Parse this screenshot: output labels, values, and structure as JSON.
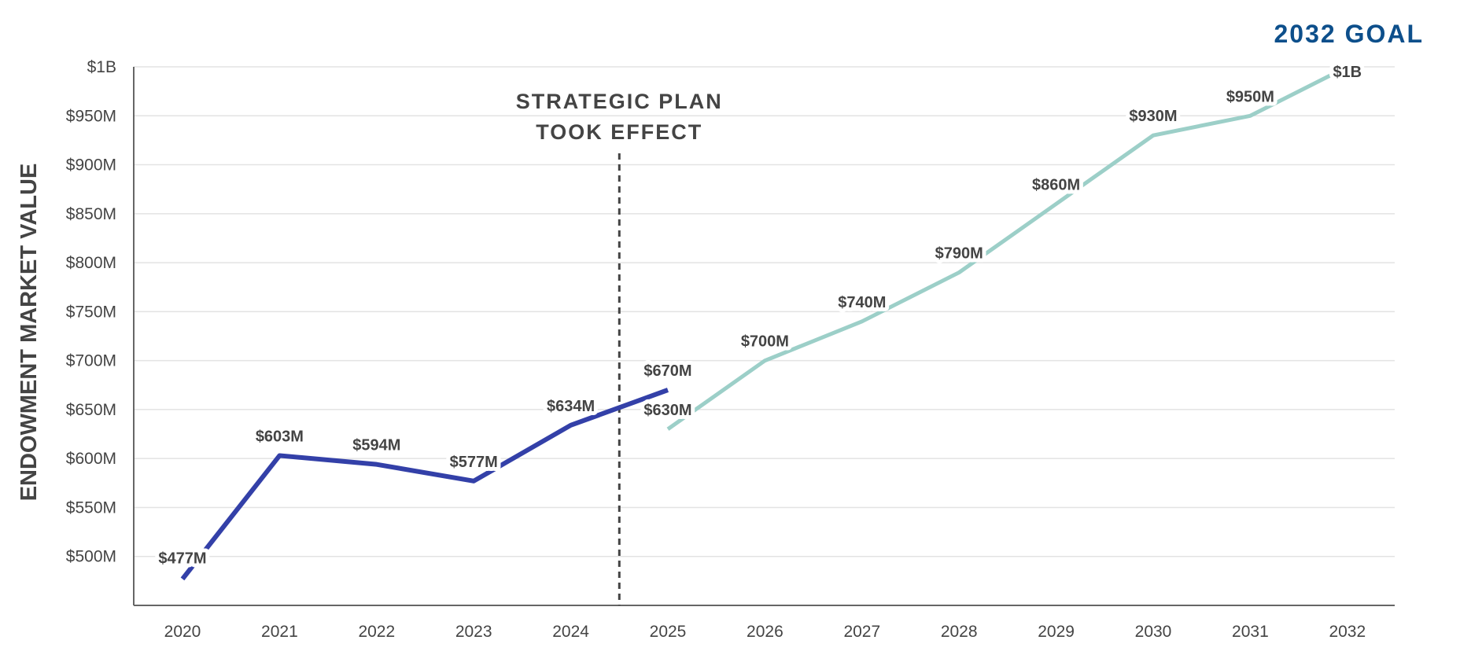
{
  "chart_data": {
    "type": "line",
    "ylabel": "ENDOWMENT MARKET VALUE",
    "xlabel": "",
    "ylim": [
      450,
      1000
    ],
    "grid": true,
    "y_ticks": [
      {
        "value": 500,
        "label": "$500M"
      },
      {
        "value": 550,
        "label": "$550M"
      },
      {
        "value": 600,
        "label": "$600M"
      },
      {
        "value": 650,
        "label": "$650M"
      },
      {
        "value": 700,
        "label": "$700M"
      },
      {
        "value": 750,
        "label": "$750M"
      },
      {
        "value": 800,
        "label": "$800M"
      },
      {
        "value": 850,
        "label": "$850M"
      },
      {
        "value": 900,
        "label": "$900M"
      },
      {
        "value": 950,
        "label": "$950M"
      },
      {
        "value": 1000,
        "label": "$1B"
      }
    ],
    "categories": [
      "2020",
      "2021",
      "2022",
      "2023",
      "2024",
      "2025",
      "2026",
      "2027",
      "2028",
      "2029",
      "2030",
      "2031",
      "2032"
    ],
    "series": [
      {
        "color": "#3340a8",
        "points": [
          {
            "x": "2020",
            "y": 477,
            "label": "$477M"
          },
          {
            "x": "2021",
            "y": 603,
            "label": "$603M"
          },
          {
            "x": "2022",
            "y": 594,
            "label": "$594M"
          },
          {
            "x": "2023",
            "y": 577,
            "label": "$577M"
          },
          {
            "x": "2024",
            "y": 634,
            "label": "$634M"
          },
          {
            "x": "2025",
            "y": 670,
            "label": "$670M"
          }
        ]
      },
      {
        "color": "#9ccfc8",
        "points": [
          {
            "x": "2025",
            "y": 630,
            "label": "$630M"
          },
          {
            "x": "2026",
            "y": 700,
            "label": "$700M"
          },
          {
            "x": "2027",
            "y": 740,
            "label": "$740M"
          },
          {
            "x": "2028",
            "y": 790,
            "label": "$790M"
          },
          {
            "x": "2029",
            "y": 860,
            "label": "$860M"
          },
          {
            "x": "2030",
            "y": 930,
            "label": "$930M"
          },
          {
            "x": "2031",
            "y": 950,
            "label": "$950M"
          },
          {
            "x": "2032",
            "y": 1000,
            "label": "$1B"
          }
        ]
      }
    ],
    "annotations": {
      "strategic_plan": {
        "x": 2024.5,
        "lines": [
          "STRATEGIC PLAN",
          "TOOK EFFECT"
        ]
      },
      "goal": "2032 GOAL"
    }
  }
}
